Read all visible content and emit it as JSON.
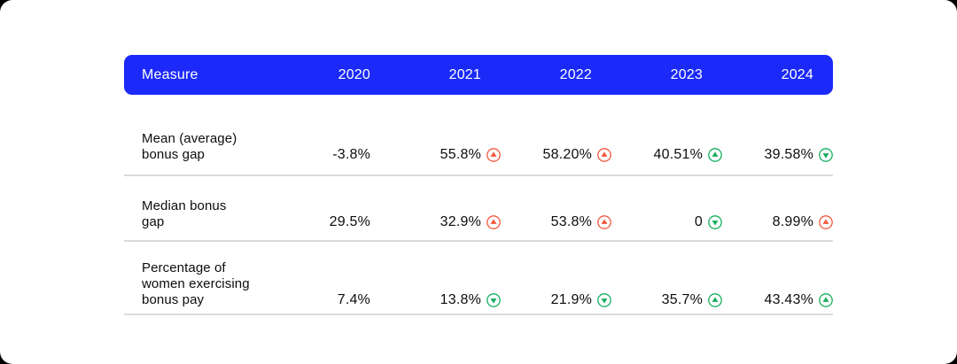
{
  "colors": {
    "header_background": "#1b2af8",
    "header_text": "#ffffff",
    "increase_bad": "#f2573d",
    "change_good": "#14ae5c",
    "divider": "#d8dbdf",
    "card_background": "#ffffff",
    "page_background": "#000000"
  },
  "table": {
    "header": {
      "measure_label": "Measure",
      "years": [
        "2020",
        "2021",
        "2022",
        "2023",
        "2024"
      ]
    },
    "rows": [
      {
        "measure": "Mean (average) bonus gap",
        "measure_lines": [
          "Mean (average)",
          "bonus gap"
        ],
        "values": [
          {
            "text": "-3.8%",
            "arrow": null,
            "color": null
          },
          {
            "text": "55.8%",
            "arrow": "up",
            "color": "red"
          },
          {
            "text": "58.20%",
            "arrow": "up",
            "color": "red"
          },
          {
            "text": "40.51%",
            "arrow": "up",
            "color": "green"
          },
          {
            "text": "39.58%",
            "arrow": "down",
            "color": "green"
          }
        ]
      },
      {
        "measure": "Median bonus gap",
        "measure_lines": [
          "Median bonus",
          "gap"
        ],
        "values": [
          {
            "text": "29.5%",
            "arrow": null,
            "color": null
          },
          {
            "text": "32.9%",
            "arrow": "up",
            "color": "red"
          },
          {
            "text": "53.8%",
            "arrow": "up",
            "color": "red"
          },
          {
            "text": "0",
            "arrow": "down",
            "color": "green"
          },
          {
            "text": "8.99%",
            "arrow": "up",
            "color": "red"
          }
        ]
      },
      {
        "measure": "Percentage of women exercising bonus pay",
        "measure_lines": [
          "Percentage of",
          "women exercising",
          "bonus pay"
        ],
        "values": [
          {
            "text": "7.4%",
            "arrow": null,
            "color": null
          },
          {
            "text": "13.8%",
            "arrow": "down",
            "color": "green"
          },
          {
            "text": "21.9%",
            "arrow": "down",
            "color": "green"
          },
          {
            "text": "35.7%",
            "arrow": "up",
            "color": "green"
          },
          {
            "text": "43.43%",
            "arrow": "up",
            "color": "green"
          }
        ]
      }
    ]
  },
  "chart_data": {
    "type": "table",
    "row_header_label": "Measure",
    "categories": [
      "2020",
      "2021",
      "2022",
      "2023",
      "2024"
    ],
    "series": [
      {
        "name": "Mean (average) bonus gap",
        "unit": "%",
        "values": [
          -3.8,
          55.8,
          58.2,
          40.51,
          39.58
        ],
        "change_indicators": [
          null,
          "up-red",
          "up-red",
          "up-green",
          "down-green"
        ]
      },
      {
        "name": "Median bonus gap",
        "unit": "%",
        "values": [
          29.5,
          32.9,
          53.8,
          0,
          8.99
        ],
        "change_indicators": [
          null,
          "up-red",
          "up-red",
          "down-green",
          "up-red"
        ]
      },
      {
        "name": "Percentage of women exercising bonus pay",
        "unit": "%",
        "values": [
          7.4,
          13.8,
          21.9,
          35.7,
          43.43
        ],
        "change_indicators": [
          null,
          "down-green",
          "down-green",
          "up-green",
          "up-green"
        ]
      }
    ],
    "legend_position": "none",
    "grid": "horizontal-dividers"
  }
}
